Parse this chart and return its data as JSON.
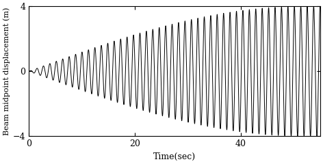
{
  "title": "",
  "xlabel": "Time(sec)",
  "ylabel": "Beam midpoint displacement (m)",
  "xlim": [
    0,
    55
  ],
  "ylim": [
    -4,
    4
  ],
  "yticks": [
    -4,
    0,
    4
  ],
  "xticks": [
    0,
    20,
    40
  ],
  "t_start": 0.0,
  "t_end": 55.0,
  "dt": 0.002,
  "omega_carrier": 5.2,
  "omega_excitation": 4.9,
  "line_color": "#000000",
  "line_width": 0.7,
  "background_color": "#ffffff",
  "figsize": [
    4.72,
    2.4
  ],
  "dpi": 100,
  "xlabel_fontsize": 9,
  "ylabel_fontsize": 8,
  "tick_fontsize": 9
}
